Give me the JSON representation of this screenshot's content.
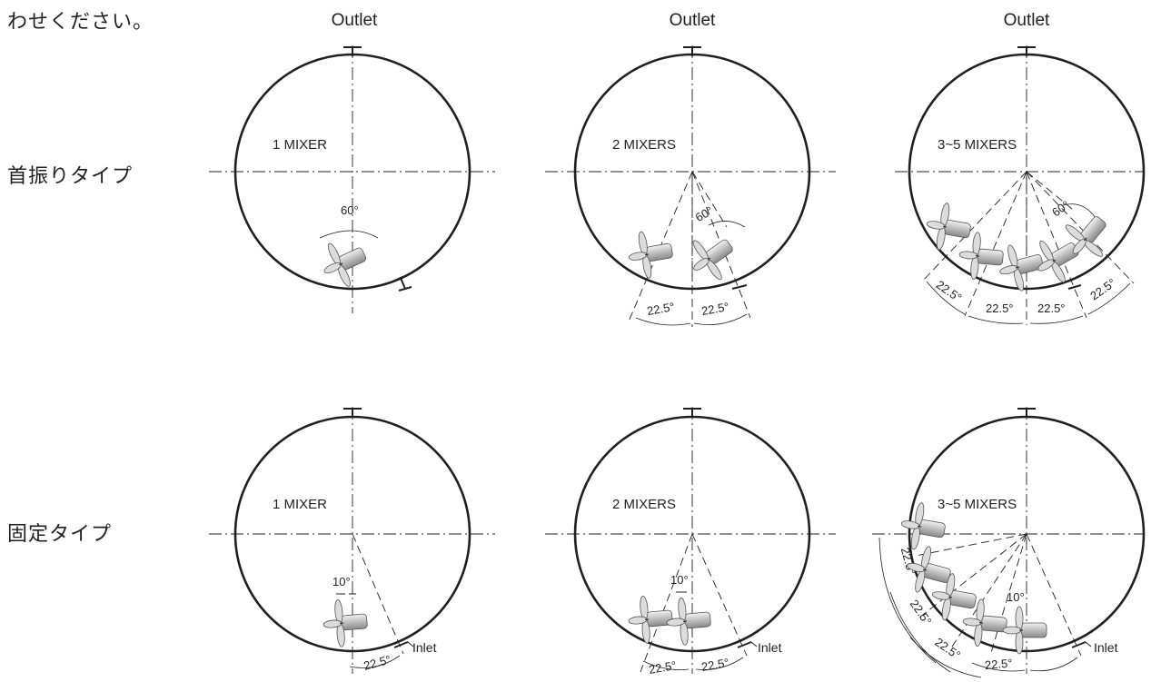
{
  "intro_text": "わせください。",
  "rows": [
    {
      "label": "首振りタイプ",
      "diagrams": [
        {
          "outlet": "Outlet",
          "mixers": "1 MIXER",
          "angles": [
            "60°"
          ]
        },
        {
          "outlet": "Outlet",
          "mixers": "2 MIXERS",
          "angles": [
            "60°",
            "22.5°",
            "22.5°"
          ]
        },
        {
          "outlet": "Outlet",
          "mixers": "3~5 MIXERS",
          "angles": [
            "60°",
            "22.5°",
            "22.5°",
            "22.5°",
            "22.5°"
          ]
        }
      ]
    },
    {
      "label": "固定タイプ",
      "diagrams": [
        {
          "outlet": "",
          "mixers": "1 MIXER",
          "angles": [
            "10°",
            "22.5°"
          ],
          "inlet": "Inlet"
        },
        {
          "outlet": "",
          "mixers": "2 MIXERS",
          "angles": [
            "10°",
            "22.5°",
            "22.5°"
          ],
          "inlet": "Inlet"
        },
        {
          "outlet": "",
          "mixers": "3~5 MIXERS",
          "angles": [
            "10°",
            "22.5°",
            "22.5°",
            "22.5°",
            "22.5°"
          ],
          "inlet": "Inlet"
        }
      ]
    }
  ]
}
